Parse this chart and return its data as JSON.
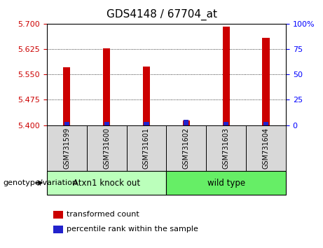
{
  "title": "GDS4148 / 67704_at",
  "samples": [
    "GSM731599",
    "GSM731600",
    "GSM731601",
    "GSM731602",
    "GSM731603",
    "GSM731604"
  ],
  "red_values": [
    5.572,
    5.626,
    5.574,
    5.415,
    5.692,
    5.657
  ],
  "blue_values": [
    3.5,
    3.5,
    3.5,
    5.5,
    3.5,
    3.5
  ],
  "y_min": 5.4,
  "y_max": 5.7,
  "y_ticks_left": [
    5.4,
    5.475,
    5.55,
    5.625,
    5.7
  ],
  "y_ticks_right": [
    0,
    25,
    50,
    75,
    100
  ],
  "red_color": "#cc0000",
  "blue_color": "#2222cc",
  "bar_width": 0.18,
  "group1_label": "Atxn1 knock out",
  "group2_label": "wild type",
  "group1_color": "#bbffbb",
  "group2_color": "#66ee66",
  "group1_indices": [
    0,
    1,
    2
  ],
  "group2_indices": [
    3,
    4,
    5
  ],
  "legend_red": "transformed count",
  "legend_blue": "percentile rank within the sample",
  "xlabel_genotype": "genotype/variation",
  "sample_bg": "#d8d8d8",
  "plot_bg": "#ffffff",
  "title_fontsize": 11
}
